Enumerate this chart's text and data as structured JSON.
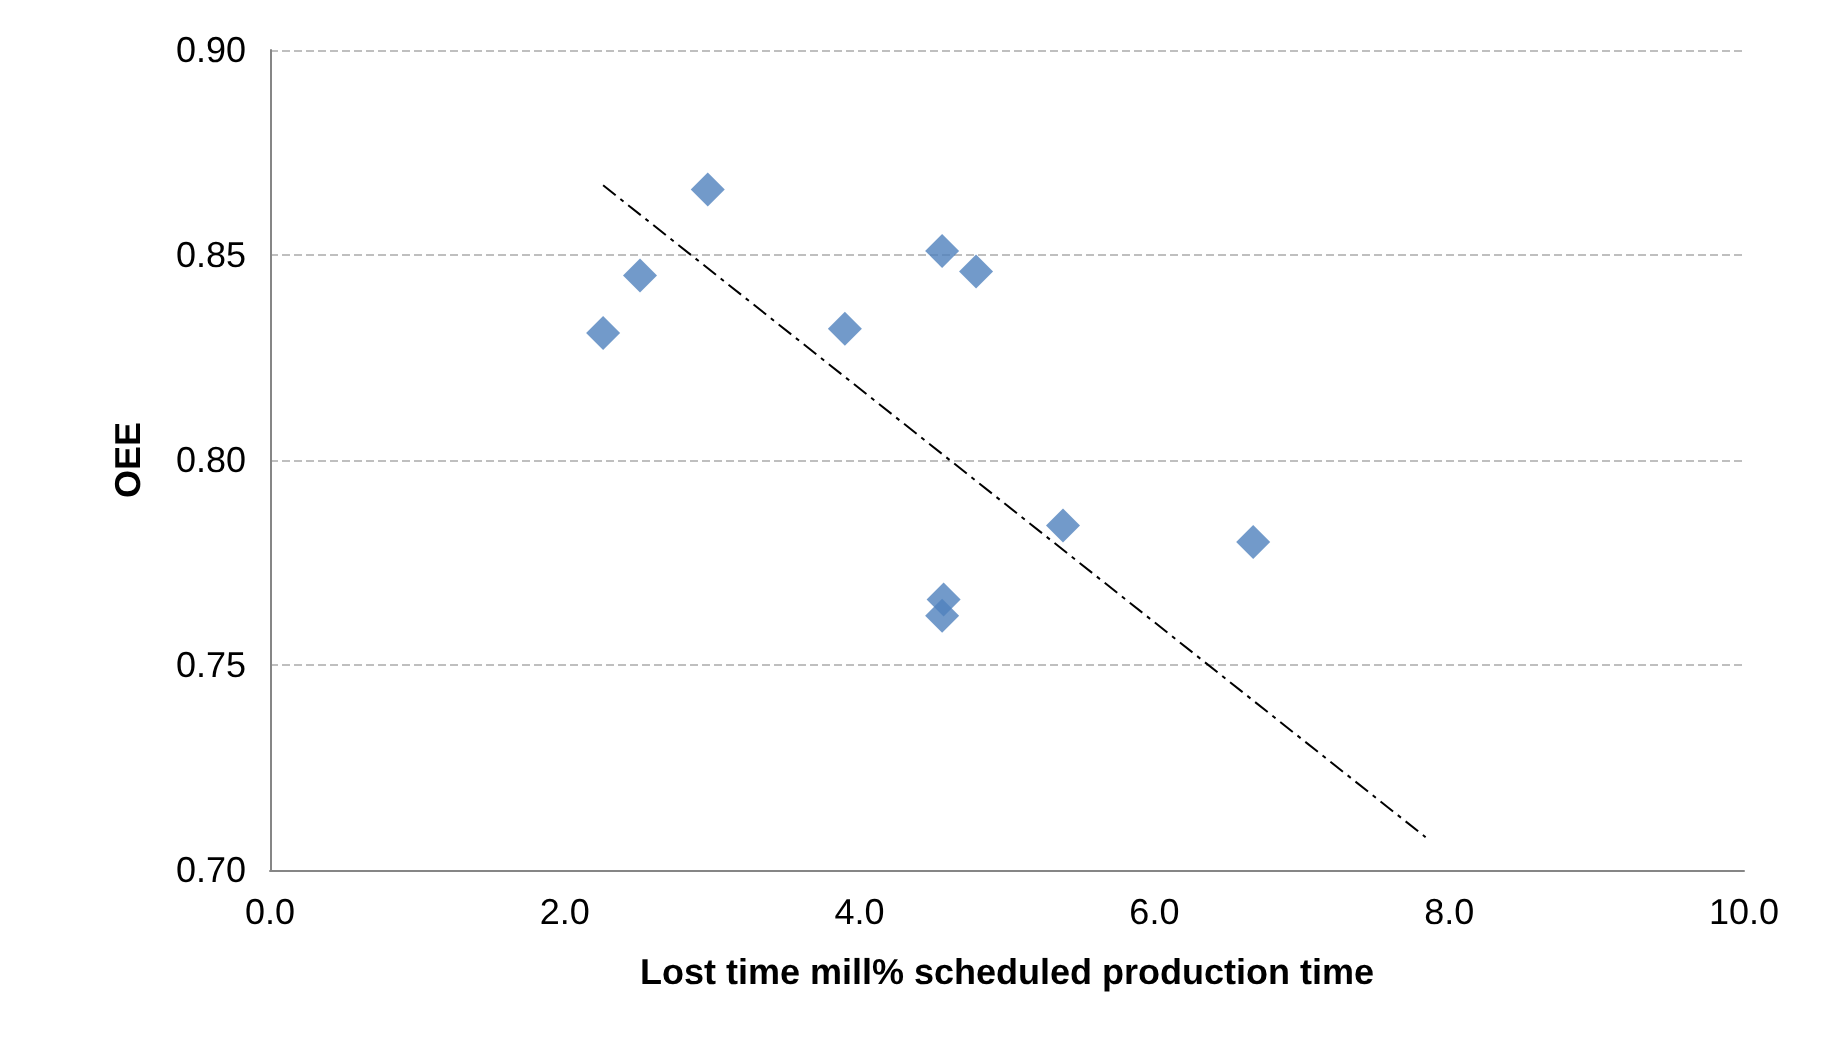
{
  "chart_data": {
    "type": "scatter",
    "xlabel": "Lost time mill% scheduled production time",
    "ylabel": "OEE",
    "series": [
      {
        "color": "#4f81bd",
        "marker": "diamond",
        "x": [
          2.26,
          2.51,
          2.97,
          3.9,
          4.56,
          4.79,
          5.38,
          6.67,
          4.57,
          4.56
        ],
        "values": [
          0.831,
          0.845,
          0.866,
          0.832,
          0.851,
          0.846,
          0.784,
          0.78,
          0.766,
          0.762
        ]
      },
      {
        "type": "line",
        "color": "#000000",
        "line_style": "dashed",
        "marker": "none",
        "x": [
          2.26,
          7.84
        ],
        "values": [
          0.867,
          0.708
        ]
      }
    ],
    "xlim": [
      0,
      10
    ],
    "xticks": [
      {
        "value": 0,
        "label": "0.0"
      },
      {
        "value": 2,
        "label": "2.0"
      },
      {
        "value": 4,
        "label": "4.0"
      },
      {
        "value": 6,
        "label": "6.0"
      },
      {
        "value": 8,
        "label": "8.0"
      },
      {
        "value": 10,
        "label": "10.0"
      }
    ],
    "ylim": [
      0.7,
      0.9
    ],
    "yticks": [
      {
        "value": 0.7,
        "label": "0.70"
      },
      {
        "value": 0.75,
        "label": "0.75"
      },
      {
        "value": 0.8,
        "label": "0.80"
      },
      {
        "value": 0.85,
        "label": "0.85"
      },
      {
        "value": 0.9,
        "label": "0.90"
      }
    ],
    "grid": "y"
  }
}
